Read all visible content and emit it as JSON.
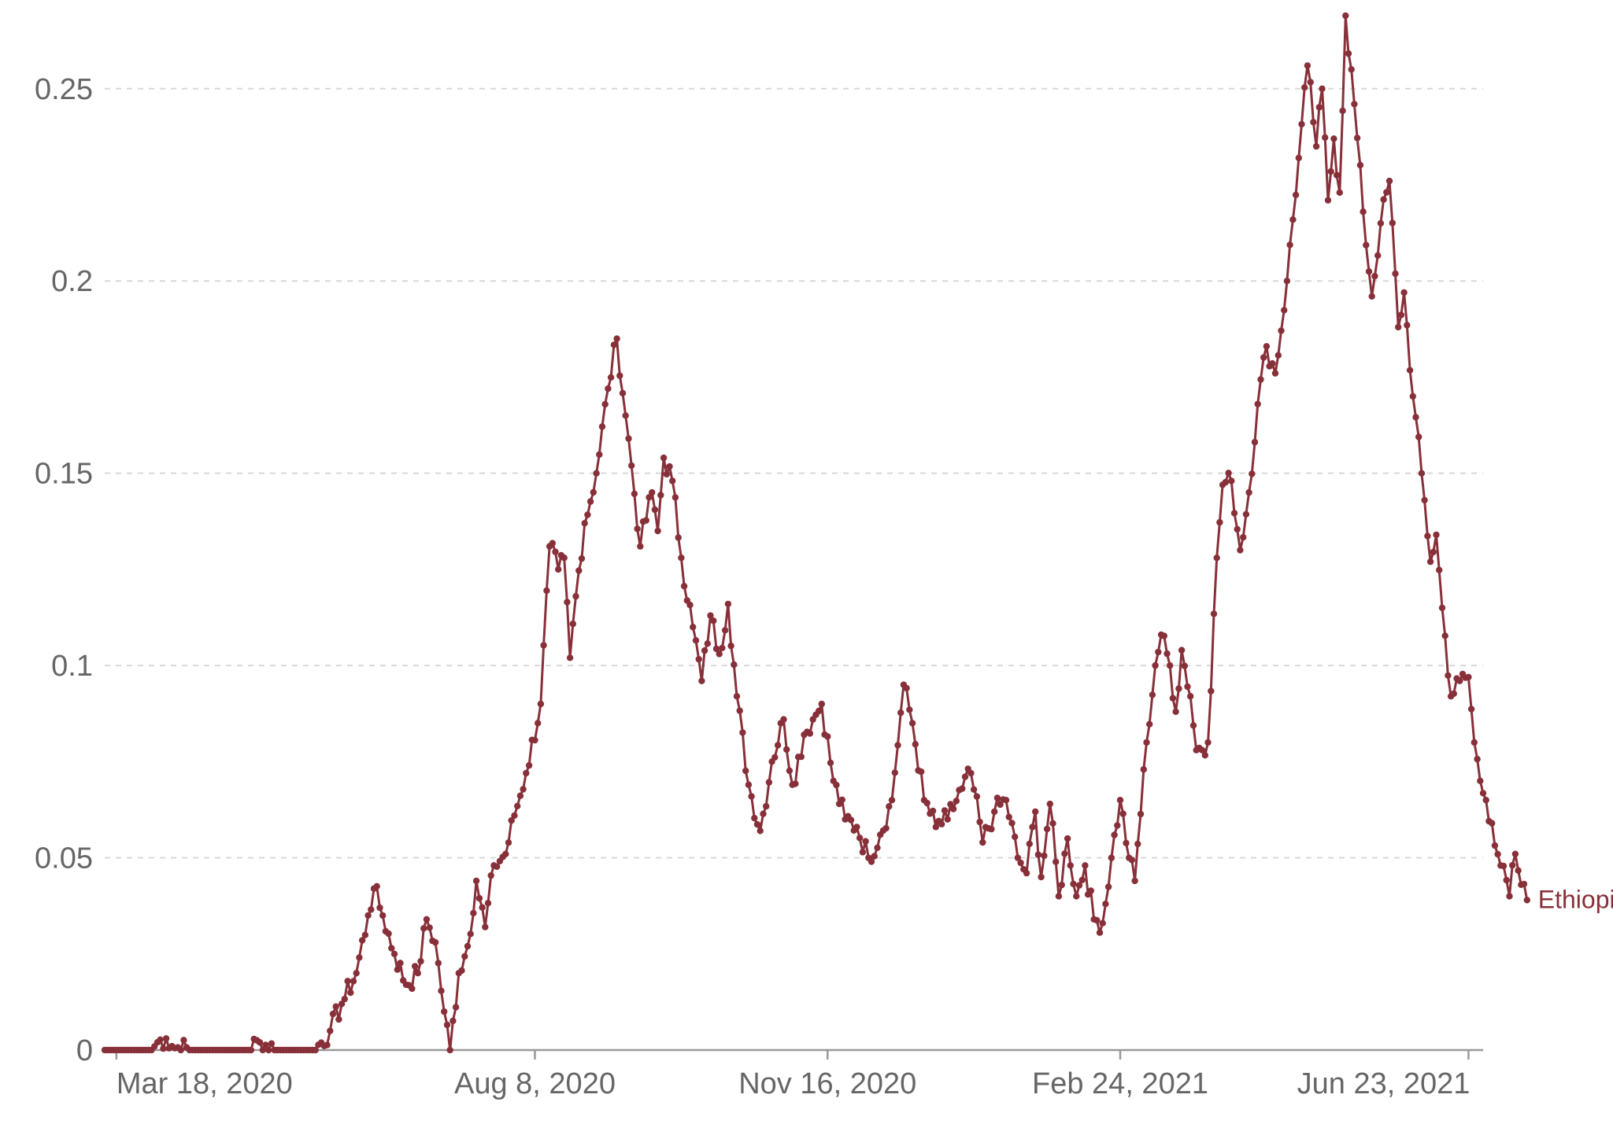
{
  "chart_data": {
    "type": "line",
    "title": "",
    "xlabel": "",
    "ylabel": "",
    "x_range": [
      "2020-03-14",
      "2021-06-28"
    ],
    "ylim": [
      0,
      0.27
    ],
    "y_ticks": [
      {
        "value": 0,
        "label": "0"
      },
      {
        "value": 0.05,
        "label": "0.05"
      },
      {
        "value": 0.1,
        "label": "0.1"
      },
      {
        "value": 0.15,
        "label": "0.15"
      },
      {
        "value": 0.2,
        "label": "0.2"
      },
      {
        "value": 0.25,
        "label": "0.25"
      }
    ],
    "x_ticks": [
      {
        "date": "2020-03-18",
        "label": "Mar 18, 2020"
      },
      {
        "date": "2020-08-08",
        "label": "Aug 8, 2020"
      },
      {
        "date": "2020-11-16",
        "label": "Nov 16, 2020"
      },
      {
        "date": "2021-02-24",
        "label": "Feb 24, 2021"
      },
      {
        "date": "2021-06-23",
        "label": "Jun 23, 2021"
      }
    ],
    "grid": "horizontal dashed",
    "legend": "inline label at line end",
    "series": [
      {
        "name": "Ethiopia",
        "color": "#883039",
        "points": [
          [
            "2020-03-14",
            0
          ],
          [
            "2020-03-30",
            0
          ],
          [
            "2020-04-01",
            0.002
          ],
          [
            "2020-04-04",
            0.003
          ],
          [
            "2020-04-06",
            0.001
          ],
          [
            "2020-04-12",
            0
          ],
          [
            "2020-05-01",
            0
          ],
          [
            "2020-05-06",
            0.002
          ],
          [
            "2020-05-12",
            0
          ],
          [
            "2020-05-25",
            0
          ],
          [
            "2020-05-30",
            0.005
          ],
          [
            "2020-06-03",
            0.012
          ],
          [
            "2020-06-08",
            0.02
          ],
          [
            "2020-06-12",
            0.035
          ],
          [
            "2020-06-14",
            0.042
          ],
          [
            "2020-06-17",
            0.035
          ],
          [
            "2020-06-21",
            0.025
          ],
          [
            "2020-06-25",
            0.017
          ],
          [
            "2020-06-29",
            0.02
          ],
          [
            "2020-07-02",
            0.034
          ],
          [
            "2020-07-05",
            0.028
          ],
          [
            "2020-07-08",
            0.01
          ],
          [
            "2020-07-10",
            0
          ],
          [
            "2020-07-13",
            0.02
          ],
          [
            "2020-07-16",
            0.027
          ],
          [
            "2020-07-19",
            0.044
          ],
          [
            "2020-07-22",
            0.032
          ],
          [
            "2020-07-25",
            0.048
          ],
          [
            "2020-07-29",
            0.051
          ],
          [
            "2020-08-01",
            0.061
          ],
          [
            "2020-08-05",
            0.072
          ],
          [
            "2020-08-10",
            0.09
          ],
          [
            "2020-08-13",
            0.131
          ],
          [
            "2020-08-16",
            0.125
          ],
          [
            "2020-08-18",
            0.128
          ],
          [
            "2020-08-20",
            0.102
          ],
          [
            "2020-08-22",
            0.118
          ],
          [
            "2020-08-25",
            0.137
          ],
          [
            "2020-08-29",
            0.15
          ],
          [
            "2020-09-02",
            0.172
          ],
          [
            "2020-09-05",
            0.185
          ],
          [
            "2020-09-08",
            0.165
          ],
          [
            "2020-09-10",
            0.152
          ],
          [
            "2020-09-13",
            0.131
          ],
          [
            "2020-09-17",
            0.145
          ],
          [
            "2020-09-19",
            0.135
          ],
          [
            "2020-09-21",
            0.154
          ],
          [
            "2020-09-24",
            0.148
          ],
          [
            "2020-09-27",
            0.128
          ],
          [
            "2020-10-01",
            0.11
          ],
          [
            "2020-10-04",
            0.096
          ],
          [
            "2020-10-07",
            0.113
          ],
          [
            "2020-10-10",
            0.103
          ],
          [
            "2020-10-13",
            0.116
          ],
          [
            "2020-10-16",
            0.092
          ],
          [
            "2020-10-20",
            0.069
          ],
          [
            "2020-10-24",
            0.057
          ],
          [
            "2020-10-28",
            0.075
          ],
          [
            "2020-11-01",
            0.086
          ],
          [
            "2020-11-04",
            0.069
          ],
          [
            "2020-11-08",
            0.082
          ],
          [
            "2020-11-11",
            0.086
          ],
          [
            "2020-11-14",
            0.09
          ],
          [
            "2020-11-18",
            0.07
          ],
          [
            "2020-11-22",
            0.06
          ],
          [
            "2020-11-26",
            0.058
          ],
          [
            "2020-11-30",
            0.05
          ],
          [
            "2020-12-04",
            0.056
          ],
          [
            "2020-12-08",
            0.065
          ],
          [
            "2020-12-12",
            0.095
          ],
          [
            "2020-12-15",
            0.085
          ],
          [
            "2020-12-19",
            0.065
          ],
          [
            "2020-12-23",
            0.058
          ],
          [
            "2020-12-27",
            0.06
          ],
          [
            "2021-01-01",
            0.068
          ],
          [
            "2021-01-04",
            0.072
          ],
          [
            "2021-01-08",
            0.054
          ],
          [
            "2021-01-12",
            0.062
          ],
          [
            "2021-01-16",
            0.065
          ],
          [
            "2021-01-20",
            0.05
          ],
          [
            "2021-01-23",
            0.046
          ],
          [
            "2021-01-26",
            0.062
          ],
          [
            "2021-01-28",
            0.045
          ],
          [
            "2021-01-31",
            0.064
          ],
          [
            "2021-02-03",
            0.04
          ],
          [
            "2021-02-06",
            0.055
          ],
          [
            "2021-02-09",
            0.04
          ],
          [
            "2021-02-12",
            0.048
          ],
          [
            "2021-02-15",
            0.034
          ],
          [
            "2021-02-18",
            0.033
          ],
          [
            "2021-02-21",
            0.05
          ],
          [
            "2021-02-24",
            0.065
          ],
          [
            "2021-02-27",
            0.05
          ],
          [
            "2021-03-01",
            0.044
          ],
          [
            "2021-03-05",
            0.08
          ],
          [
            "2021-03-08",
            0.1
          ],
          [
            "2021-03-10",
            0.108
          ],
          [
            "2021-03-13",
            0.1
          ],
          [
            "2021-03-15",
            0.088
          ],
          [
            "2021-03-17",
            0.104
          ],
          [
            "2021-03-20",
            0.092
          ],
          [
            "2021-03-22",
            0.078
          ],
          [
            "2021-03-26",
            0.08
          ],
          [
            "2021-03-29",
            0.128
          ],
          [
            "2021-03-31",
            0.147
          ],
          [
            "2021-04-03",
            0.148
          ],
          [
            "2021-04-06",
            0.13
          ],
          [
            "2021-04-09",
            0.145
          ],
          [
            "2021-04-12",
            0.168
          ],
          [
            "2021-04-15",
            0.183
          ],
          [
            "2021-04-18",
            0.176
          ],
          [
            "2021-04-22",
            0.2
          ],
          [
            "2021-04-26",
            0.232
          ],
          [
            "2021-04-29",
            0.256
          ],
          [
            "2021-05-02",
            0.235
          ],
          [
            "2021-05-04",
            0.25
          ],
          [
            "2021-05-06",
            0.221
          ],
          [
            "2021-05-08",
            0.237
          ],
          [
            "2021-05-10",
            0.223
          ],
          [
            "2021-05-12",
            0.269
          ],
          [
            "2021-05-15",
            0.246
          ],
          [
            "2021-05-18",
            0.218
          ],
          [
            "2021-05-21",
            0.196
          ],
          [
            "2021-05-24",
            0.215
          ],
          [
            "2021-05-27",
            0.226
          ],
          [
            "2021-05-30",
            0.188
          ],
          [
            "2021-06-01",
            0.197
          ],
          [
            "2021-06-04",
            0.17
          ],
          [
            "2021-06-07",
            0.15
          ],
          [
            "2021-06-10",
            0.127
          ],
          [
            "2021-06-12",
            0.134
          ],
          [
            "2021-06-14",
            0.115
          ],
          [
            "2021-06-17",
            0.092
          ],
          [
            "2021-06-20",
            0.096
          ],
          [
            "2021-06-23",
            0.097
          ],
          [
            "2021-06-25",
            0.08
          ],
          [
            "2021-06-27",
            0.07
          ],
          [
            "2021-06-29",
            0.065
          ],
          [
            "2021-07-01",
            0.059
          ],
          [
            "2021-07-04",
            0.048
          ],
          [
            "2021-07-07",
            0.04
          ],
          [
            "2021-07-09",
            0.051
          ],
          [
            "2021-07-11",
            0.043
          ],
          [
            "2021-07-13",
            0.039
          ]
        ]
      }
    ]
  }
}
